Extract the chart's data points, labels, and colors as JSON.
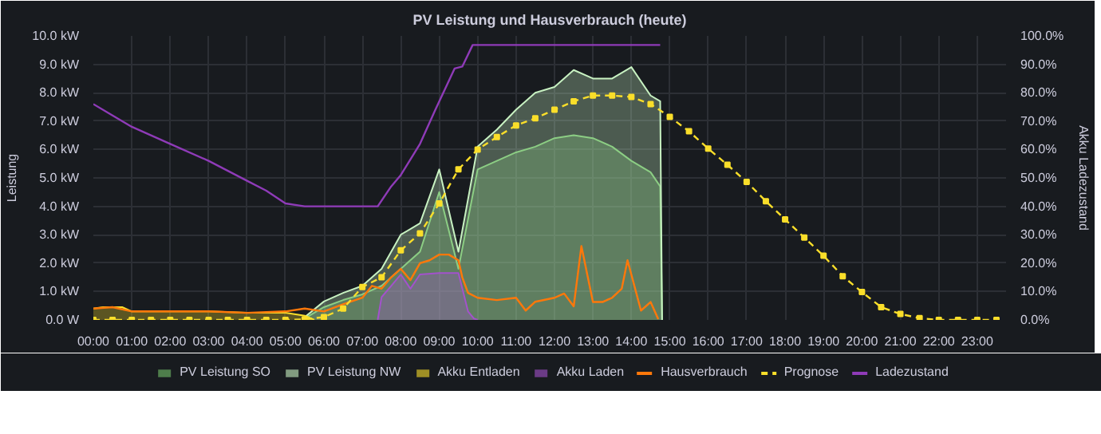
{
  "chart_data": {
    "type": "line",
    "title": "PV Leistung und Hausverbrauch (heute)",
    "ylabel": "Leistung",
    "y2label": "Akku Ladezustand",
    "xlim": [
      0,
      23.75
    ],
    "ylim": [
      0,
      10
    ],
    "y2lim": [
      0,
      100
    ],
    "xticks": [
      {
        "value": 0,
        "label": "00:00"
      },
      {
        "value": 1,
        "label": "01:00"
      },
      {
        "value": 2,
        "label": "02:00"
      },
      {
        "value": 3,
        "label": "03:00"
      },
      {
        "value": 4,
        "label": "04:00"
      },
      {
        "value": 5,
        "label": "05:00"
      },
      {
        "value": 6,
        "label": "06:00"
      },
      {
        "value": 7,
        "label": "07:00"
      },
      {
        "value": 8,
        "label": "08:00"
      },
      {
        "value": 9,
        "label": "09:00"
      },
      {
        "value": 10,
        "label": "10:00"
      },
      {
        "value": 11,
        "label": "11:00"
      },
      {
        "value": 12,
        "label": "12:00"
      },
      {
        "value": 13,
        "label": "13:00"
      },
      {
        "value": 14,
        "label": "14:00"
      },
      {
        "value": 15,
        "label": "15:00"
      },
      {
        "value": 16,
        "label": "16:00"
      },
      {
        "value": 17,
        "label": "17:00"
      },
      {
        "value": 18,
        "label": "18:00"
      },
      {
        "value": 19,
        "label": "19:00"
      },
      {
        "value": 20,
        "label": "20:00"
      },
      {
        "value": 21,
        "label": "21:00"
      },
      {
        "value": 22,
        "label": "22:00"
      },
      {
        "value": 23,
        "label": "23:00"
      }
    ],
    "yticks": [
      {
        "value": 0,
        "label": "0.0 W"
      },
      {
        "value": 1,
        "label": "1.0 kW"
      },
      {
        "value": 2,
        "label": "2.0 kW"
      },
      {
        "value": 3,
        "label": "3.0 kW"
      },
      {
        "value": 4,
        "label": "4.0 kW"
      },
      {
        "value": 5,
        "label": "5.0 kW"
      },
      {
        "value": 6,
        "label": "6.0 kW"
      },
      {
        "value": 7,
        "label": "7.0 kW"
      },
      {
        "value": 8,
        "label": "8.0 kW"
      },
      {
        "value": 9,
        "label": "9.0 kW"
      },
      {
        "value": 10,
        "label": "10.0 kW"
      }
    ],
    "y2ticks": [
      {
        "value": 0,
        "label": "0.0%"
      },
      {
        "value": 10,
        "label": "10.0%"
      },
      {
        "value": 20,
        "label": "20.0%"
      },
      {
        "value": 30,
        "label": "30.0%"
      },
      {
        "value": 40,
        "label": "40.0%"
      },
      {
        "value": 50,
        "label": "50.0%"
      },
      {
        "value": 60,
        "label": "60.0%"
      },
      {
        "value": 70,
        "label": "70.0%"
      },
      {
        "value": 80,
        "label": "80.0%"
      },
      {
        "value": 90,
        "label": "90.0%"
      },
      {
        "value": 100,
        "label": "100.0%"
      }
    ],
    "grid": true,
    "legend": "bottom",
    "series": [
      {
        "name": "PV Leistung SO",
        "type": "area",
        "color": "#73bf69",
        "x": [
          5.5,
          6,
          6.5,
          7,
          7.5,
          8,
          8.5,
          9,
          9.5,
          10,
          10.5,
          11,
          11.5,
          12,
          12.5,
          13,
          13.5,
          14,
          14.5,
          14.75,
          14.8
        ],
        "values": [
          0.05,
          0.45,
          0.7,
          0.9,
          1.2,
          1.8,
          2.4,
          4.5,
          1.8,
          5.3,
          5.6,
          5.9,
          6.1,
          6.4,
          6.5,
          6.4,
          6.1,
          5.6,
          5.2,
          4.7,
          0
        ]
      },
      {
        "name": "PV Leistung NW",
        "type": "area",
        "color": "#c8f2c2",
        "x": [
          5.5,
          6,
          6.5,
          7,
          7.5,
          8,
          8.5,
          9,
          9.5,
          10,
          10.5,
          11,
          11.5,
          12,
          12.5,
          13,
          13.5,
          14,
          14.5,
          14.75,
          14.8
        ],
        "values": [
          0.1,
          0.65,
          0.95,
          1.2,
          1.8,
          3.0,
          3.4,
          5.3,
          2.4,
          6.1,
          6.7,
          7.4,
          8.0,
          8.2,
          8.8,
          8.5,
          8.5,
          8.9,
          7.9,
          7.7,
          0
        ]
      },
      {
        "name": "Akku Entladen",
        "type": "area",
        "color": "#fade2a",
        "x": [
          0,
          0.25,
          0.75,
          1,
          2,
          3,
          4,
          5,
          5.5,
          5.75
        ],
        "values": [
          0.4,
          0.45,
          0.45,
          0.3,
          0.3,
          0.3,
          0.25,
          0.25,
          0.15,
          0
        ]
      },
      {
        "name": "Akku Laden",
        "type": "area",
        "color": "#a352cc",
        "x": [
          7.4,
          7.5,
          7.75,
          8,
          8.25,
          8.5,
          9,
          9.5,
          9.75,
          9.9,
          10
        ],
        "values": [
          0,
          0.8,
          1.2,
          1.6,
          1.1,
          1.6,
          1.65,
          1.65,
          0.3,
          0.05,
          0
        ]
      },
      {
        "name": "Hausverbrauch",
        "type": "line",
        "color": "#ff780a",
        "x": [
          0,
          0.5,
          1,
          2,
          3,
          4,
          5,
          5.5,
          6,
          6.5,
          7,
          7.25,
          7.5,
          7.75,
          8,
          8.25,
          8.5,
          8.75,
          9,
          9.25,
          9.5,
          9.6,
          9.75,
          10,
          10.5,
          11,
          11.25,
          11.5,
          12,
          12.25,
          12.5,
          12.7,
          13,
          13.25,
          13.5,
          13.75,
          13.9,
          14.25,
          14.5,
          14.7
        ],
        "values": [
          0.4,
          0.45,
          0.3,
          0.3,
          0.3,
          0.25,
          0.3,
          0.4,
          0.3,
          0.55,
          0.78,
          1.2,
          1.1,
          1.5,
          1.8,
          1.4,
          2.0,
          2.1,
          2.3,
          2.3,
          2.1,
          1.5,
          0.95,
          0.78,
          0.7,
          0.78,
          0.33,
          0.64,
          0.78,
          0.93,
          0.48,
          2.6,
          0.63,
          0.63,
          0.78,
          1.1,
          2.1,
          0.33,
          0.63,
          0.03
        ]
      },
      {
        "name": "Prognose",
        "color": "#fade2a",
        "marker": "square",
        "line_style": "dashed",
        "x": [
          0,
          0.5,
          1,
          1.5,
          2,
          2.5,
          3,
          3.5,
          4,
          4.5,
          5,
          5.5,
          6,
          6.5,
          7,
          7.5,
          8,
          8.5,
          9,
          9.5,
          10,
          10.5,
          11,
          11.5,
          12,
          12.5,
          13,
          13.5,
          14,
          14.5,
          15,
          15.5,
          16,
          16.5,
          17,
          17.5,
          18,
          18.5,
          19,
          19.5,
          20,
          20.5,
          21,
          21.5,
          22,
          22.5,
          23,
          23.5
        ],
        "values": [
          0,
          0,
          0,
          0,
          0,
          0,
          0,
          0,
          0,
          0,
          0,
          0.02,
          0.1,
          0.4,
          1.16,
          1.5,
          2.45,
          3.05,
          4.1,
          5.3,
          6.0,
          6.44,
          6.85,
          7.1,
          7.4,
          7.7,
          7.9,
          7.9,
          7.85,
          7.6,
          7.15,
          6.64,
          6.03,
          5.46,
          4.86,
          4.18,
          3.54,
          2.9,
          2.26,
          1.54,
          0.98,
          0.45,
          0.21,
          0.06,
          0,
          0,
          0,
          0
        ]
      },
      {
        "name": "Ladezustand",
        "axis": "y2",
        "color": "#8f3bb8",
        "x": [
          0,
          0.5,
          1,
          2,
          3,
          4,
          4.5,
          5,
          5.5,
          7.4,
          7.75,
          8,
          8.5,
          8.9,
          9.4,
          9.6,
          9.87,
          14.75
        ],
        "values": [
          76,
          72,
          68,
          62,
          56,
          49,
          45.5,
          41,
          40,
          40,
          47,
          51,
          62,
          74,
          88.5,
          89.2,
          96.8,
          96.8
        ]
      }
    ]
  }
}
